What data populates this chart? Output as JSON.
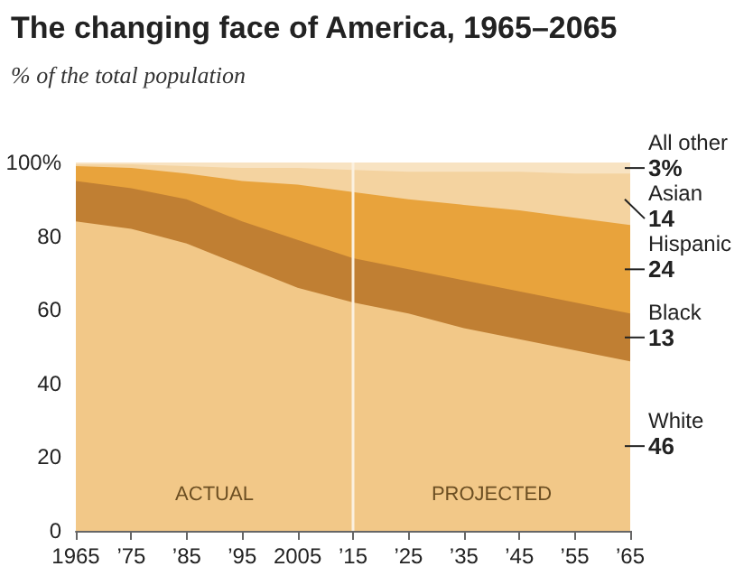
{
  "chart_data": {
    "type": "area",
    "stacked": true,
    "title": "The changing face of America, 1965–2065",
    "subtitle": "% of the total population",
    "x": [
      1965,
      1975,
      1985,
      1995,
      2005,
      2015,
      2025,
      2035,
      2045,
      2055,
      2065
    ],
    "series": [
      {
        "name": "White",
        "color": "#f2c888",
        "values": [
          84,
          82,
          78,
          72,
          66,
          62,
          59,
          55,
          52,
          49,
          46
        ],
        "value_labels": [
          null,
          null,
          null,
          null,
          null,
          null,
          null,
          null,
          null,
          null,
          "46"
        ]
      },
      {
        "name": "Black",
        "color": "#c07f33",
        "values": [
          11,
          11,
          12,
          12,
          13,
          12,
          12,
          13,
          13,
          13,
          13
        ],
        "value_labels": [
          null,
          null,
          null,
          null,
          null,
          null,
          null,
          null,
          null,
          null,
          "13"
        ]
      },
      {
        "name": "Hispanic",
        "color": "#e8a33c",
        "values": [
          4,
          5.5,
          7,
          11,
          15,
          18,
          19,
          20.5,
          22,
          23,
          24
        ],
        "value_labels": [
          null,
          null,
          null,
          null,
          null,
          null,
          null,
          null,
          null,
          null,
          "24"
        ]
      },
      {
        "name": "Asian",
        "color": "#f4d3a0",
        "values": [
          0.5,
          1,
          2,
          3.5,
          4.5,
          6,
          7.5,
          9,
          10.5,
          12,
          14
        ],
        "value_labels": [
          null,
          null,
          null,
          null,
          null,
          null,
          null,
          null,
          null,
          null,
          "14"
        ]
      },
      {
        "name": "All other",
        "color": "#f8e3c2",
        "values": [
          0.5,
          0.5,
          1,
          1.5,
          1.5,
          2,
          2.5,
          2.5,
          2.5,
          3,
          3
        ],
        "value_labels": [
          null,
          null,
          null,
          null,
          null,
          null,
          null,
          null,
          null,
          null,
          "3%"
        ]
      }
    ],
    "xlim": [
      1965,
      2065
    ],
    "xticks": [
      {
        "value": 1965,
        "label": "1965"
      },
      {
        "value": 1975,
        "label": "’75"
      },
      {
        "value": 1985,
        "label": "’85"
      },
      {
        "value": 1995,
        "label": "’95"
      },
      {
        "value": 2005,
        "label": "2005"
      },
      {
        "value": 2015,
        "label": "’15"
      },
      {
        "value": 2025,
        "label": "’25"
      },
      {
        "value": 2035,
        "label": "’35"
      },
      {
        "value": 2045,
        "label": "’45"
      },
      {
        "value": 2055,
        "label": "’55"
      },
      {
        "value": 2065,
        "label": "’65"
      }
    ],
    "ylim": [
      0,
      100
    ],
    "yticks": [
      0,
      20,
      40,
      60,
      80,
      {
        "value": 100,
        "label": "100%"
      }
    ],
    "grid": false,
    "legend": false,
    "marker": "none",
    "ref_lines": [
      {
        "axis": "x",
        "value": 2015,
        "label": null,
        "color": "#fbf1e0"
      }
    ],
    "annotations": [
      "ACTUAL",
      "PROJECTED"
    ]
  }
}
